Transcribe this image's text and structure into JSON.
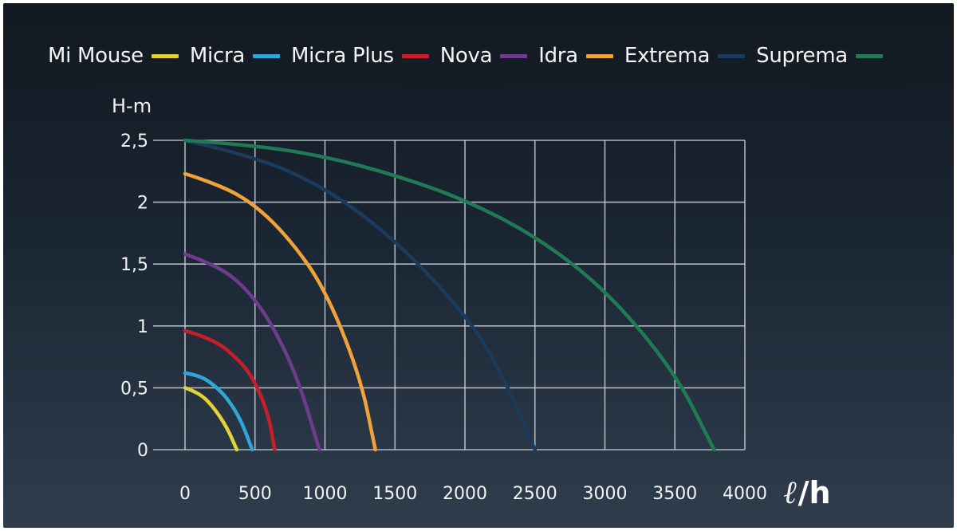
{
  "chart_data": {
    "type": "line",
    "ylabel": "H-m",
    "xlabel": "ℓ/h",
    "xlim": [
      0,
      4000
    ],
    "ylim": [
      0,
      2.5
    ],
    "x_ticks": [
      "0",
      "500",
      "1000",
      "1500",
      "2000",
      "2500",
      "3000",
      "3500",
      "4000"
    ],
    "y_ticks": [
      "0",
      "0,5",
      "1",
      "1,5",
      "2",
      "2,5"
    ],
    "grid": true,
    "legend_position": "top",
    "series": [
      {
        "name": "Mi Mouse",
        "color": "#e4d13a",
        "x": [
          0,
          100,
          200,
          300,
          370
        ],
        "y": [
          0.5,
          0.46,
          0.35,
          0.18,
          0
        ]
      },
      {
        "name": "Micra",
        "color": "#2fa6d6",
        "x": [
          0,
          100,
          200,
          300,
          400,
          480
        ],
        "y": [
          0.62,
          0.6,
          0.53,
          0.42,
          0.24,
          0
        ]
      },
      {
        "name": "Micra Plus",
        "color": "#c81e2c",
        "x": [
          0,
          200,
          400,
          500,
          600,
          640
        ],
        "y": [
          0.96,
          0.9,
          0.71,
          0.55,
          0.27,
          0
        ]
      },
      {
        "name": "Nova",
        "color": "#6e3b8f",
        "x": [
          0,
          200,
          400,
          600,
          800,
          960
        ],
        "y": [
          1.58,
          1.5,
          1.35,
          1.06,
          0.6,
          0
        ]
      },
      {
        "name": "Idra",
        "color": "#f0a23b",
        "x": [
          0,
          250,
          500,
          750,
          1000,
          1250,
          1360
        ],
        "y": [
          2.23,
          2.14,
          1.98,
          1.7,
          1.3,
          0.6,
          0
        ]
      },
      {
        "name": "Extrema",
        "color": "#1b3a5c",
        "x": [
          0,
          500,
          1000,
          1500,
          2000,
          2250,
          2500
        ],
        "y": [
          2.5,
          2.37,
          2.12,
          1.7,
          1.1,
          0.65,
          0
        ]
      },
      {
        "name": "Suprema",
        "color": "#1f7a55",
        "x": [
          0,
          500,
          1000,
          1500,
          2000,
          2500,
          3000,
          3500,
          3780
        ],
        "y": [
          2.5,
          2.46,
          2.37,
          2.22,
          2.02,
          1.73,
          1.3,
          0.63,
          0
        ]
      }
    ]
  }
}
